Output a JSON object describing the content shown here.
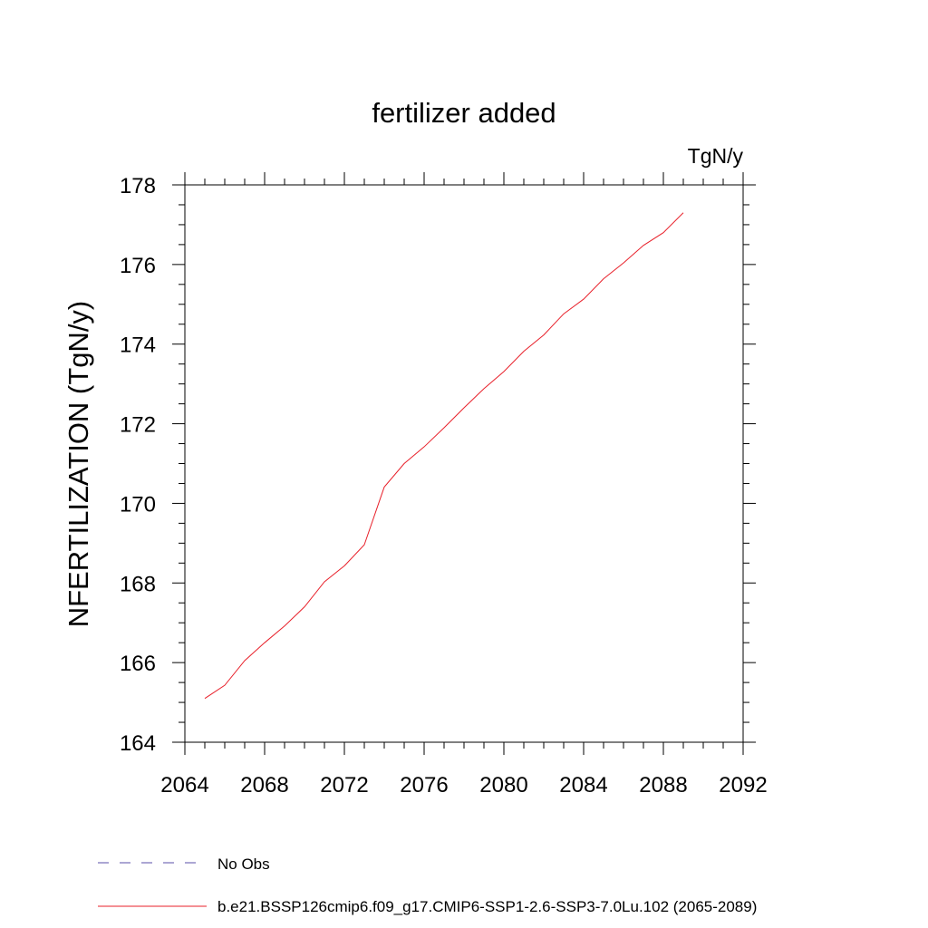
{
  "chart_data": {
    "type": "line",
    "title": "fertilizer added",
    "units_label": "TgN/y",
    "ylabel": "NFERTILIZATION  (TgN/y)",
    "xlabel": "",
    "xlim": [
      2064,
      2092
    ],
    "ylim": [
      164,
      178
    ],
    "x_ticks": [
      2064,
      2068,
      2072,
      2076,
      2080,
      2084,
      2088,
      2092
    ],
    "y_ticks": [
      164,
      166,
      168,
      170,
      172,
      174,
      176,
      178
    ],
    "grid": false,
    "legend_placement": "bottom",
    "legend": [
      {
        "label": "No Obs",
        "style": "dashed",
        "color": "#5a4fa8"
      },
      {
        "label": "b.e21.BSSP126cmip6.f09_g17.CMIP6-SSP1-2.6-SSP3-7.0Lu.102 (2065-2089)",
        "style": "solid",
        "color": "#e8202a"
      }
    ],
    "series": [
      {
        "name": "b.e21.BSSP126cmip6.f09_g17.CMIP6-SSP1-2.6-SSP3-7.0Lu.102 (2065-2089)",
        "color": "#e8202a",
        "x": [
          2065,
          2066,
          2067,
          2068,
          2069,
          2070,
          2071,
          2072,
          2073,
          2074,
          2075,
          2076,
          2077,
          2078,
          2079,
          2080,
          2081,
          2082,
          2083,
          2084,
          2085,
          2086,
          2087,
          2088,
          2089
        ],
        "y": [
          165.1,
          165.43,
          166.05,
          166.5,
          166.92,
          167.4,
          168.03,
          168.43,
          168.96,
          170.41,
          171.0,
          171.42,
          171.9,
          172.4,
          172.88,
          173.31,
          173.82,
          174.23,
          174.76,
          175.13,
          175.64,
          176.04,
          176.48,
          176.8,
          177.3
        ]
      }
    ]
  }
}
